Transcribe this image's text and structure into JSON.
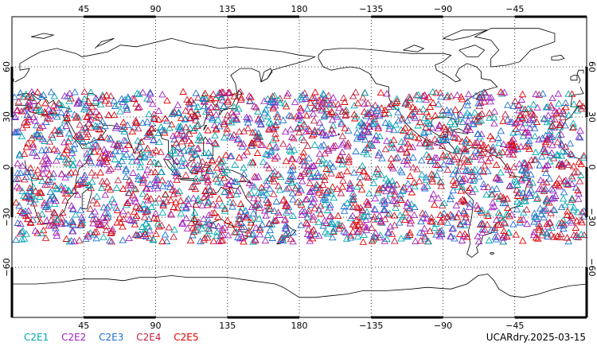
{
  "map": {
    "lon_labels": [
      "45",
      "90",
      "135",
      "180",
      "−135",
      "−90",
      "−45"
    ],
    "lat_labels_left": [
      "60",
      "30",
      "0",
      "−30",
      "−60"
    ],
    "lat_labels_right": [
      "60",
      "30",
      "0",
      "−30",
      "−60"
    ],
    "lon_values": [
      45,
      90,
      135,
      180,
      -135,
      -90,
      -45
    ],
    "lat_values": [
      60,
      30,
      0,
      -30,
      -60
    ],
    "lon_range": [
      0,
      360
    ],
    "lat_range": [
      -90,
      90
    ],
    "grid": "dotted",
    "marker_shape": "triangle-outline",
    "point_lat_band": [
      -45,
      45
    ],
    "background": "#ffffff",
    "coastline_color": "#000000"
  },
  "legend": {
    "series": [
      {
        "name": "C2E1",
        "color": "#00a8b0"
      },
      {
        "name": "C2E2",
        "color": "#a020c0"
      },
      {
        "name": "C2E3",
        "color": "#1e6fd0"
      },
      {
        "name": "C2E4",
        "color": "#c02040"
      },
      {
        "name": "C2E5",
        "color": "#e00000"
      }
    ]
  },
  "footer": {
    "label": "UCARdry.2025-03-15"
  }
}
